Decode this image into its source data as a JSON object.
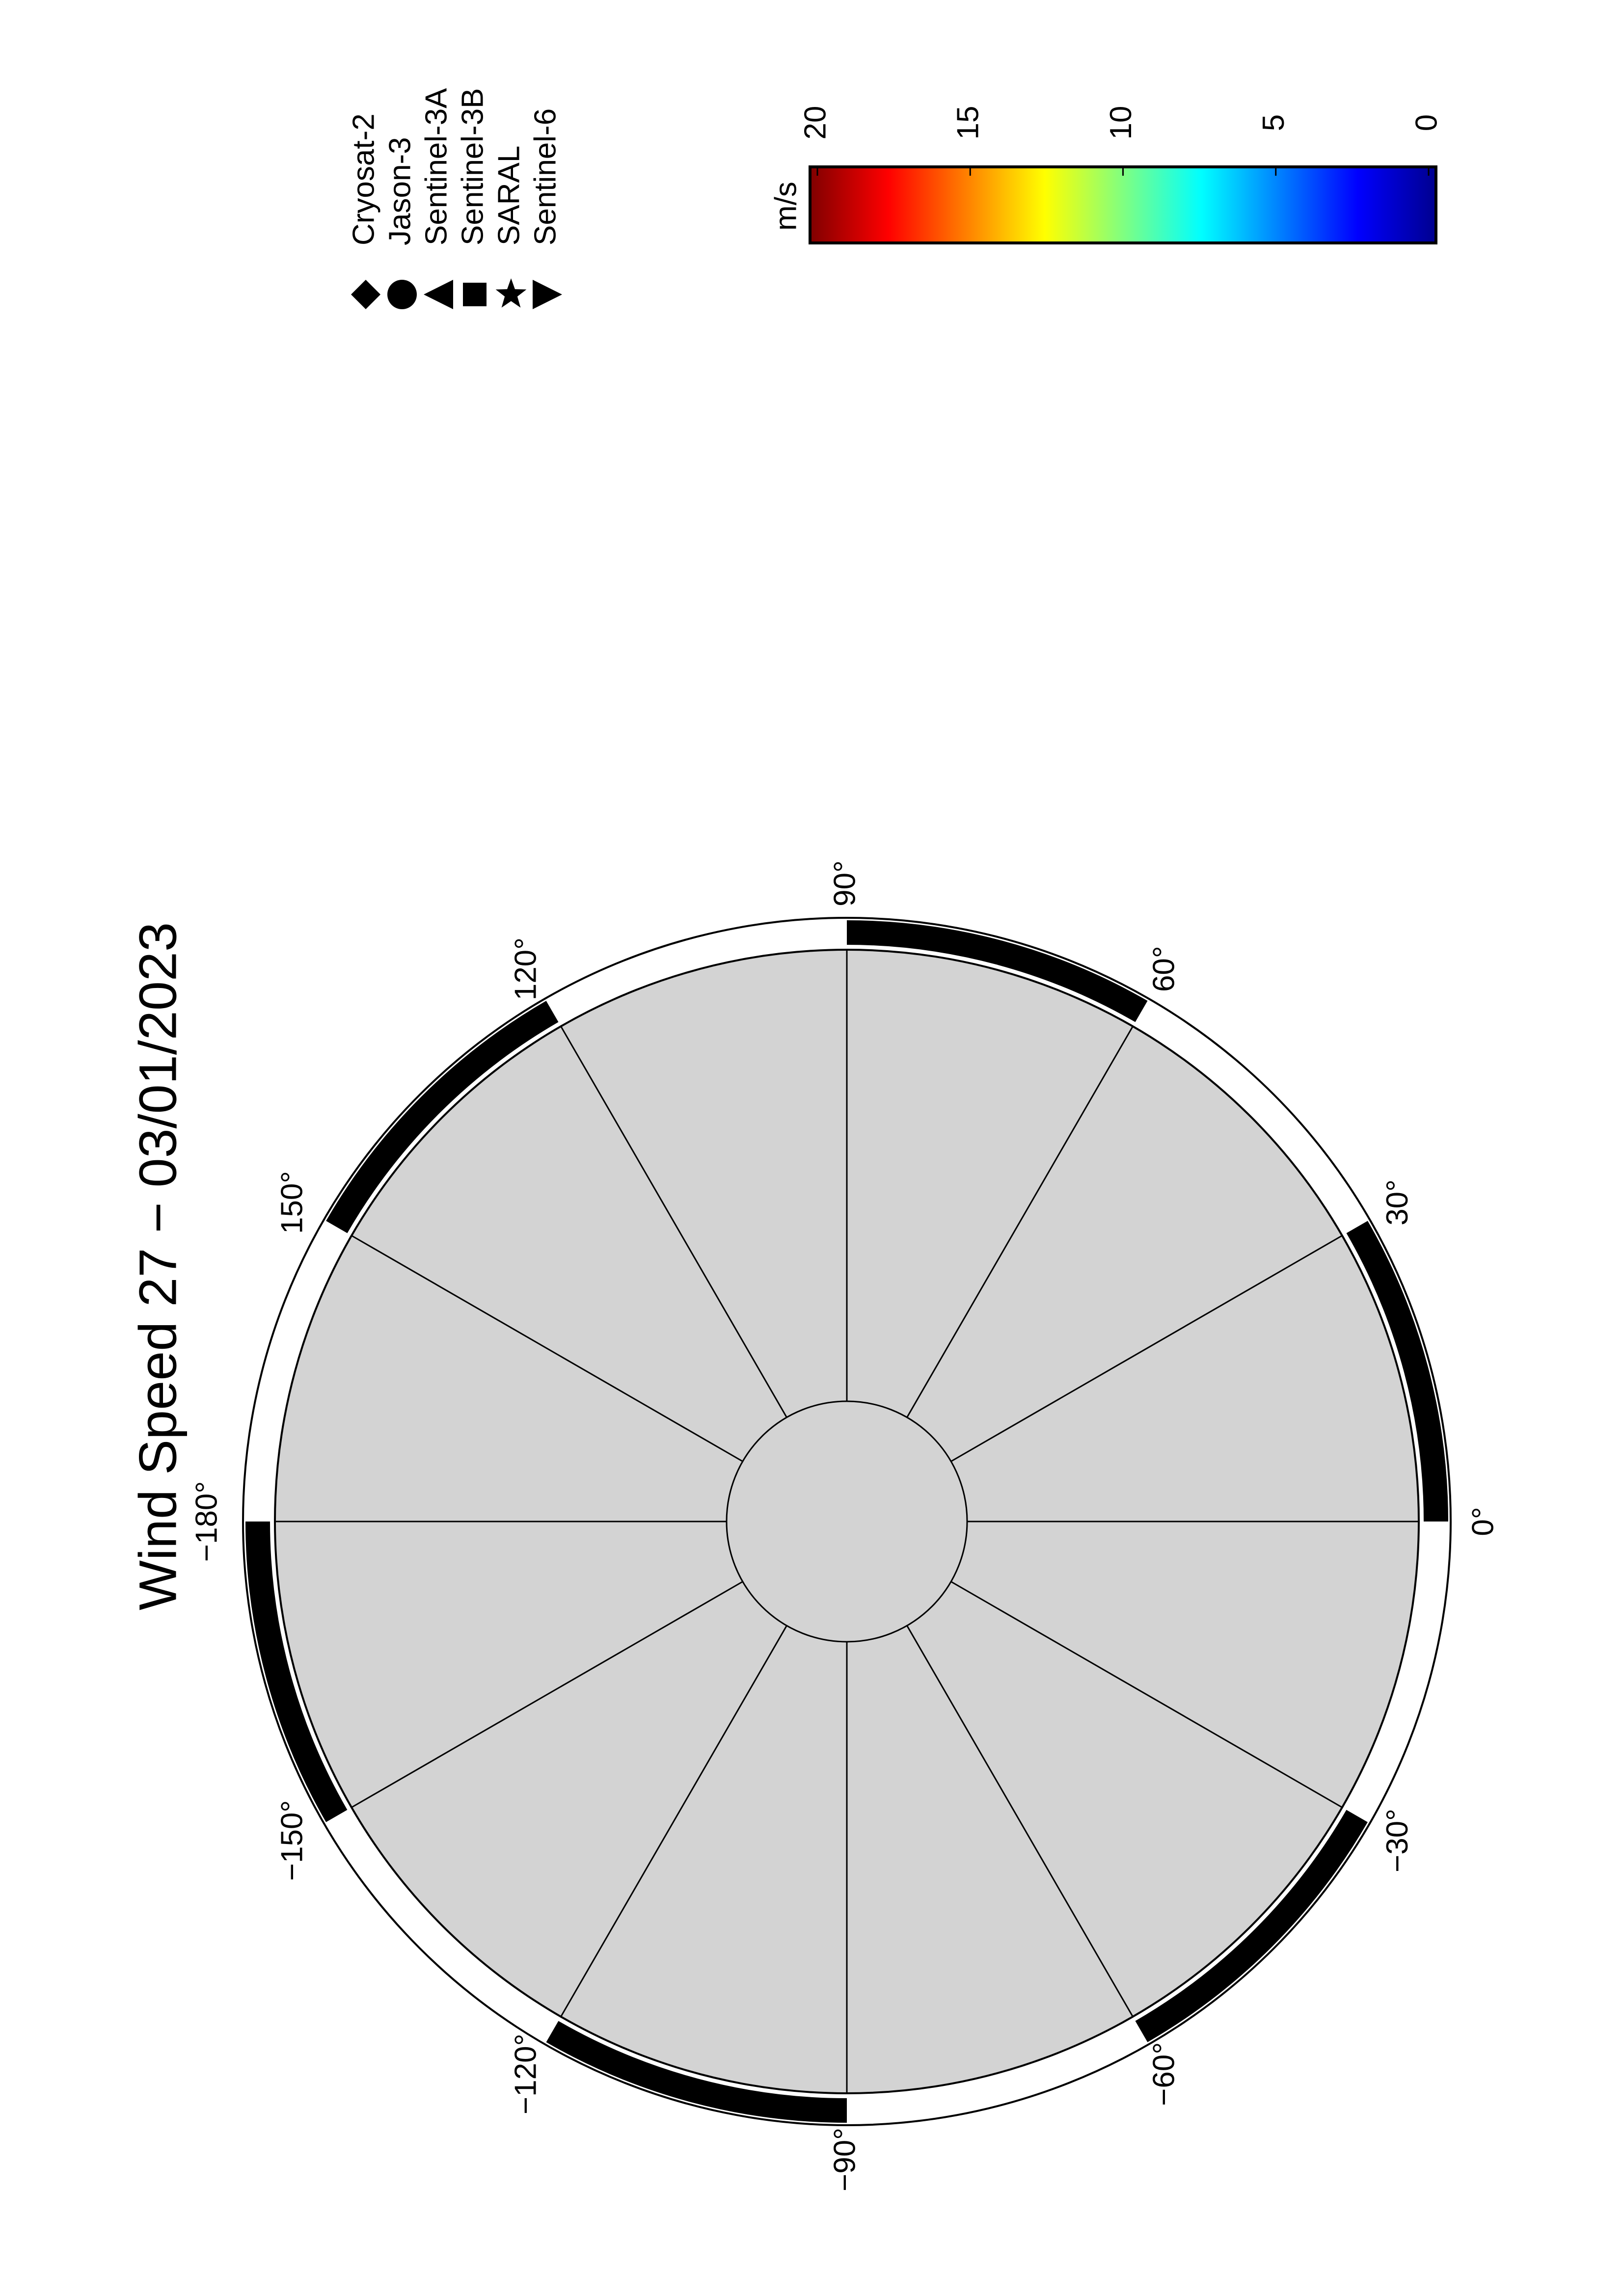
{
  "title": "Wind Speed 27 − 03/01/2023",
  "legend": {
    "items": [
      {
        "name": "Cryosat-2",
        "marker": "diamond"
      },
      {
        "name": "Jason-3",
        "marker": "circle"
      },
      {
        "name": "Sentinel-3A",
        "marker": "triangle-left"
      },
      {
        "name": "Sentinel-3B",
        "marker": "square"
      },
      {
        "name": "SARAL",
        "marker": "star"
      },
      {
        "name": "Sentinel-6",
        "marker": "triangle-right"
      }
    ]
  },
  "colorbar": {
    "label": "m/s",
    "lim": [
      0,
      20
    ],
    "ticks": [
      0,
      5,
      10,
      15,
      20
    ],
    "colors": [
      "#00008f",
      "#0000ff",
      "#0080ff",
      "#00ffff",
      "#80ff80",
      "#ffff00",
      "#ff8000",
      "#ff0000",
      "#800000"
    ]
  },
  "map": {
    "land_color": "#d3d3d3",
    "longitude_ticks": [
      {
        "value": 0,
        "label": "0°"
      },
      {
        "value": 30,
        "label": "30°"
      },
      {
        "value": 60,
        "label": "60°"
      },
      {
        "value": 90,
        "label": "90°"
      },
      {
        "value": 120,
        "label": "120°"
      },
      {
        "value": 150,
        "label": "150°"
      },
      {
        "value": -180,
        "label": "−180°"
      },
      {
        "value": -150,
        "label": "−150°"
      },
      {
        "value": -120,
        "label": "−120°"
      },
      {
        "value": -90,
        "label": "−90°"
      },
      {
        "value": -60,
        "label": "−60°"
      },
      {
        "value": -30,
        "label": "−30°"
      }
    ]
  }
}
